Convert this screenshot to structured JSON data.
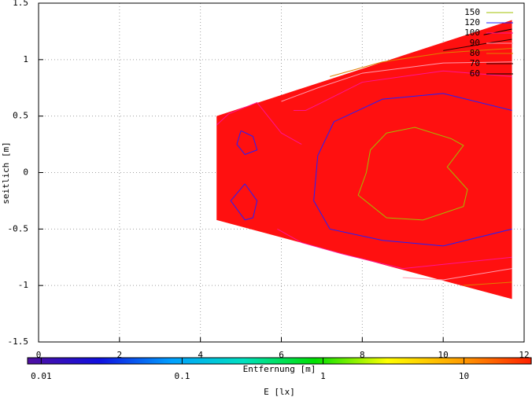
{
  "chart_data": {
    "type": "contour",
    "xlabel": "Entfernung [m]",
    "ylabel": "seitlich [m]",
    "xlim": [
      0,
      12
    ],
    "xticks": [
      0,
      2,
      4,
      6,
      8,
      10,
      12
    ],
    "ylim": [
      -1.5,
      1.5
    ],
    "yticks": [
      1.5,
      1,
      0.5,
      0,
      -0.5,
      -1,
      -1.5
    ],
    "grid": true,
    "legend": "top-right",
    "region": {
      "color": "#ff1010",
      "x": [
        4.4,
        11.7,
        11.7,
        4.4
      ],
      "y": [
        0.5,
        1.35,
        -1.12,
        -0.42
      ]
    },
    "series": [
      {
        "name": "150",
        "color": "#a0c000",
        "x": [
          8.2,
          8.6,
          9.3,
          10.2,
          10.5,
          10.1,
          10.6,
          10.5,
          9.5,
          8.6,
          7.9,
          8.1,
          8.2
        ],
        "y": [
          0.2,
          0.35,
          0.4,
          0.3,
          0.24,
          0.05,
          -0.15,
          -0.3,
          -0.42,
          -0.4,
          -0.2,
          0.0,
          0.2
        ]
      },
      {
        "name": "120",
        "color": "#2020ff",
        "x": [
          11.7,
          10.0,
          8.5,
          7.3,
          6.9,
          6.8,
          7.2,
          8.5,
          10.0,
          11.7,
          null,
          5.0,
          5.3,
          5.4,
          5.1,
          4.9,
          5.0,
          null,
          5.1,
          5.4,
          5.3,
          5.1,
          4.75,
          5.1
        ],
        "y": [
          0.55,
          0.7,
          0.65,
          0.45,
          0.15,
          -0.25,
          -0.5,
          -0.6,
          -0.65,
          -0.5,
          null,
          0.37,
          0.32,
          0.2,
          0.16,
          0.25,
          0.37,
          null,
          -0.1,
          -0.25,
          -0.4,
          -0.42,
          -0.25,
          -0.1
        ]
      },
      {
        "name": "100",
        "color": "#ff1493",
        "x": [
          11.7,
          10.0,
          8.0,
          7.0,
          6.6,
          6.3,
          null,
          4.4,
          4.7,
          5.4,
          6.0,
          6.5,
          null,
          5.9,
          6.5,
          7.5,
          9.0,
          11.7
        ],
        "y": [
          0.85,
          0.9,
          0.8,
          0.62,
          0.55,
          0.55,
          null,
          0.42,
          0.52,
          0.62,
          0.35,
          0.25,
          null,
          -0.5,
          -0.62,
          -0.72,
          -0.85,
          -0.75
        ]
      },
      {
        "name": "90",
        "color": "#ff9eb0",
        "x": [
          6.0,
          6.9,
          8.0,
          10.0,
          11.7,
          null,
          9.0,
          10.0,
          11.7
        ],
        "y": [
          0.63,
          0.75,
          0.88,
          0.97,
          0.98,
          null,
          -0.93,
          -0.95,
          -0.85
        ]
      },
      {
        "name": "80",
        "color": "#e08000",
        "x": [
          7.2,
          8.5,
          10.0,
          11.7,
          null,
          10.5,
          11.7
        ],
        "y": [
          0.85,
          0.98,
          1.06,
          1.1,
          null,
          -1.0,
          -0.97
        ]
      },
      {
        "name": "70",
        "color": "#300000",
        "x": [
          10.0,
          11.0,
          11.7
        ],
        "y": [
          1.08,
          1.14,
          1.18
        ]
      },
      {
        "name": "60",
        "color": "#000000",
        "x": [
          11.0,
          11.7
        ],
        "y": [
          1.22,
          1.27
        ]
      }
    ],
    "colorbar": {
      "label": "E [lx]",
      "log": true,
      "clim": [
        0.008,
        30
      ],
      "ticks": [
        0.01,
        0.1,
        1,
        10
      ],
      "colors": [
        "#5010a0",
        "#1010e0",
        "#00a0ff",
        "#00e0c0",
        "#00e000",
        "#ffff00",
        "#ffa000",
        "#ff2000"
      ]
    }
  }
}
